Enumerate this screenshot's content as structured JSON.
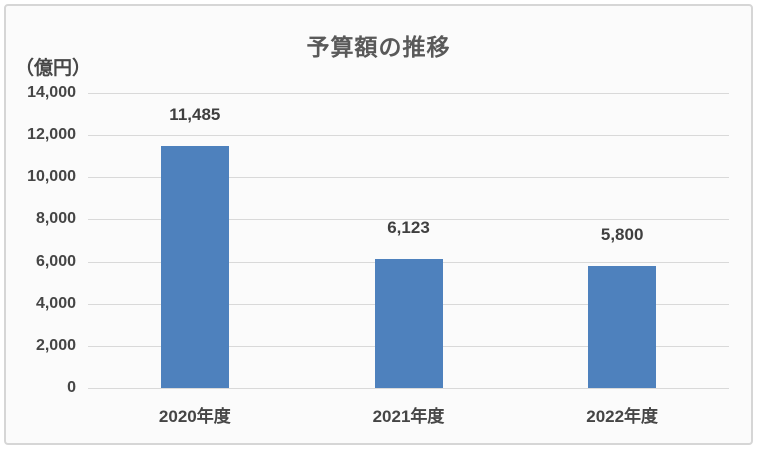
{
  "chart_data": {
    "type": "bar",
    "title": "予算額の推移",
    "unit_label": "（億円）",
    "categories": [
      "2020年度",
      "2021年度",
      "2022年度"
    ],
    "values": [
      11485,
      6123,
      5800
    ],
    "value_labels": [
      "11,485",
      "6,123",
      "5,800"
    ],
    "y_ticks": [
      "14,000",
      "12,000",
      "10,000",
      "8,000",
      "6,000",
      "4,000",
      "2,000",
      "0"
    ],
    "ylim": [
      0,
      14000
    ],
    "ylabel": "（億円）",
    "xlabel": "",
    "grid": "horizontal",
    "legend": "none",
    "colors": {
      "bar": "#4e81bd",
      "gridline": "#d9d9d9",
      "title_text": "#595959",
      "axis_text": "#454545",
      "value_text": "#3f3f3f",
      "frame_border": "#d6d6d6",
      "frame_background": "#fbfbfb"
    }
  }
}
